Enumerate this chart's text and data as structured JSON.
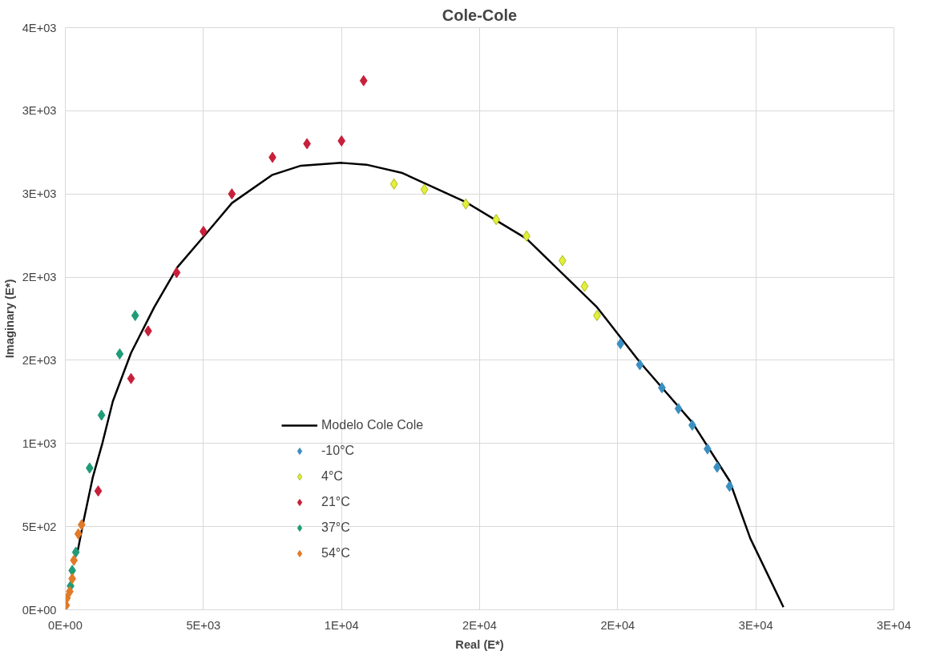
{
  "chart_data": {
    "type": "scatter",
    "title": "Cole-Cole",
    "xlabel": "Real (E*)",
    "ylabel": "Imaginary (E*)",
    "xlim": [
      0,
      30000
    ],
    "ylim": [
      0,
      3500
    ],
    "xticks": [
      {
        "value": 0,
        "label": "0E+00"
      },
      {
        "value": 5000,
        "label": "5E+03"
      },
      {
        "value": 10000,
        "label": "1E+04"
      },
      {
        "value": 15000,
        "label": "2E+04"
      },
      {
        "value": 20000,
        "label": "2E+04"
      },
      {
        "value": 25000,
        "label": "3E+04"
      },
      {
        "value": 30000,
        "label": "3E+04"
      }
    ],
    "yticks": [
      {
        "value": 0,
        "label": "0E+00"
      },
      {
        "value": 500,
        "label": "5E+02"
      },
      {
        "value": 1000,
        "label": "1E+03"
      },
      {
        "value": 1500,
        "label": "2E+03"
      },
      {
        "value": 2000,
        "label": "2E+03"
      },
      {
        "value": 2500,
        "label": "3E+03"
      },
      {
        "value": 3000,
        "label": "3E+03"
      },
      {
        "value": 3500,
        "label": "4E+03"
      }
    ],
    "grid": true,
    "legend": "center",
    "marker": "diamond",
    "series": [
      {
        "name": "Modelo Cole Cole",
        "type": "line",
        "marker": "none",
        "line_style": "solid",
        "color": "#000000",
        "x": [
          440,
          660,
          1000,
          1340,
          1720,
          2380,
          3220,
          4060,
          5000,
          6030,
          7500,
          8530,
          10000,
          10900,
          12200,
          14500,
          16700,
          19250,
          20800,
          22700,
          24050,
          24800,
          26000
        ],
        "values": [
          346,
          533,
          800,
          1000,
          1253,
          1544,
          1819,
          2060,
          2242,
          2445,
          2615,
          2670,
          2687,
          2676,
          2626,
          2451,
          2231,
          1819,
          1489,
          1126,
          775,
          429,
          16
        ]
      },
      {
        "name": "-10°C",
        "color": "#3b8fc0",
        "x": [
          20100,
          20800,
          21600,
          22200,
          22700,
          23250,
          23600,
          24050
        ],
        "values": [
          1599,
          1473,
          1335,
          1209,
          1110,
          967,
          857,
          742
        ]
      },
      {
        "name": "4°C",
        "color": "#e3f03a",
        "x": [
          11900,
          13000,
          14500,
          15600,
          16700,
          18000,
          18800,
          19250
        ],
        "values": [
          2560,
          2527,
          2440,
          2346,
          2247,
          2099,
          1945,
          1769
        ]
      },
      {
        "name": "21°C",
        "color": "#c8203a",
        "x": [
          1190,
          2380,
          3000,
          4030,
          5000,
          6030,
          7500,
          8750,
          10000,
          10800
        ],
        "values": [
          714,
          1390,
          1676,
          2027,
          2275,
          2500,
          2720,
          2802,
          2819,
          3181
        ]
      },
      {
        "name": "37°C",
        "color": "#1e9c78",
        "x": [
          190,
          250,
          380,
          880,
          1310,
          1970,
          2530
        ],
        "values": [
          143,
          236,
          346,
          852,
          1170,
          1538,
          1769
        ]
      },
      {
        "name": "54°C",
        "color": "#e07a28",
        "x": [
          30,
          60,
          160,
          250,
          310,
          470,
          590
        ],
        "values": [
          27,
          71,
          110,
          187,
          297,
          456,
          511
        ]
      }
    ]
  }
}
